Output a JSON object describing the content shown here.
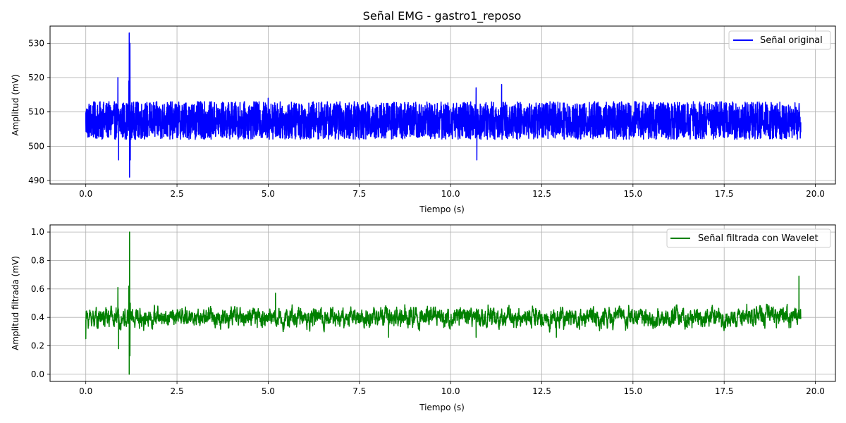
{
  "chart_data": [
    {
      "type": "line",
      "title": "Señal EMG - gastro1_reposo",
      "xlabel": "Tiempo (s)",
      "ylabel": "Amplitud (mV)",
      "xlim": [
        -0.98,
        20.55
      ],
      "ylim": [
        489.0,
        535.0
      ],
      "xticks": [
        0.0,
        2.5,
        5.0,
        7.5,
        10.0,
        12.5,
        15.0,
        17.5,
        20.0
      ],
      "xtick_labels": [
        "0.0",
        "2.5",
        "5.0",
        "7.5",
        "10.0",
        "12.5",
        "15.0",
        "17.5",
        "20.0"
      ],
      "yticks": [
        490,
        500,
        510,
        520,
        530
      ],
      "ytick_labels": [
        "490",
        "500",
        "510",
        "520",
        "530"
      ],
      "grid": true,
      "legend": "upper right",
      "series": [
        {
          "name": "Señal original",
          "color": "#0000ff",
          "x_range": [
            0.0,
            19.6
          ],
          "baseline": 507.5,
          "band": [
            502.0,
            513.0
          ],
          "x": [
            0.0,
            0.88,
            0.9,
            1.18,
            1.19,
            1.2,
            1.21,
            1.22,
            5.0,
            10.7,
            10.72,
            11.4,
            19.6
          ],
          "y": [
            507.5,
            520.0,
            496.0,
            519.0,
            533.0,
            491.0,
            530.0,
            496.0,
            514.0,
            517.0,
            496.0,
            518.0,
            507.0
          ]
        }
      ]
    },
    {
      "type": "line",
      "title": "",
      "xlabel": "Tiempo (s)",
      "ylabel": "Amplitud filtrada (mV)",
      "xlim": [
        -0.98,
        20.55
      ],
      "ylim": [
        -0.05,
        1.05
      ],
      "xticks": [
        0.0,
        2.5,
        5.0,
        7.5,
        10.0,
        12.5,
        15.0,
        17.5,
        20.0
      ],
      "xtick_labels": [
        "0.0",
        "2.5",
        "5.0",
        "7.5",
        "10.0",
        "12.5",
        "15.0",
        "17.5",
        "20.0"
      ],
      "yticks": [
        0.0,
        0.2,
        0.4,
        0.6,
        0.8,
        1.0
      ],
      "ytick_labels": [
        "0.0",
        "0.2",
        "0.4",
        "0.6",
        "0.8",
        "1.0"
      ],
      "grid": true,
      "legend": "upper right",
      "series": [
        {
          "name": "Señal filtrada con Wavelet",
          "color": "#008000",
          "x_range": [
            0.0,
            19.6
          ],
          "baseline": 0.4,
          "band": [
            0.32,
            0.48
          ],
          "x": [
            0.0,
            0.05,
            0.88,
            0.9,
            1.18,
            1.19,
            1.2,
            1.21,
            1.22,
            5.2,
            8.3,
            10.7,
            12.9,
            19.55,
            19.6
          ],
          "y": [
            0.25,
            0.42,
            0.61,
            0.18,
            0.62,
            0.0,
            1.0,
            0.13,
            0.5,
            0.57,
            0.26,
            0.26,
            0.26,
            0.69,
            0.4
          ]
        }
      ]
    }
  ]
}
